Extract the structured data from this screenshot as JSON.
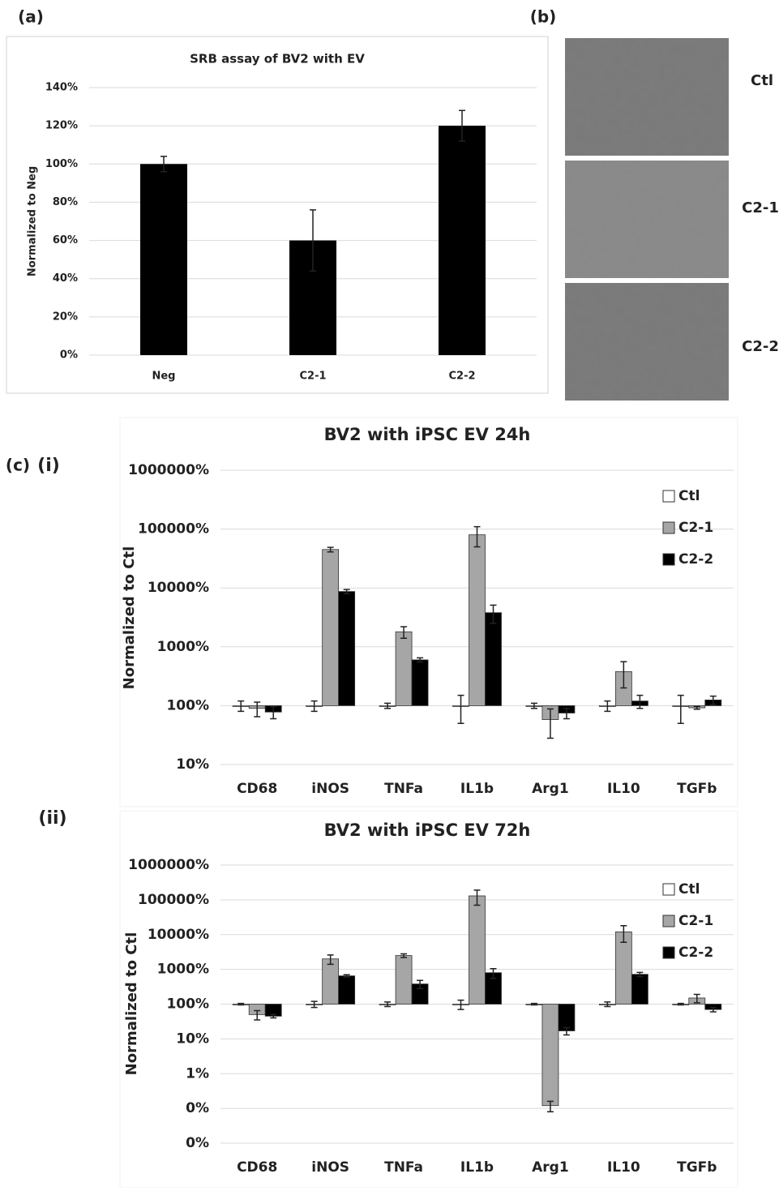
{
  "images": {
    "label": "(b)",
    "captions": [
      "Ctl",
      "C2-1",
      "C2-2"
    ]
  },
  "chart_data": [
    {
      "type": "bar",
      "panel": "(a)",
      "title": "SRB assay of BV2 with EV",
      "y_label": "Normalized to Neg",
      "categories": [
        "Neg",
        "C2-1",
        "C2-2"
      ],
      "values": [
        100,
        60,
        120
      ],
      "errors": [
        4,
        16,
        8
      ],
      "color": "#000000",
      "ylim": [
        0,
        140
      ],
      "yticks": [
        {
          "value": 0,
          "label": "0%"
        },
        {
          "value": 20,
          "label": "20%"
        },
        {
          "value": 40,
          "label": "40%"
        },
        {
          "value": 60,
          "label": "60%"
        },
        {
          "value": 80,
          "label": "80%"
        },
        {
          "value": 100,
          "label": "100%"
        },
        {
          "value": 120,
          "label": "120%"
        },
        {
          "value": 140,
          "label": "140%"
        }
      ],
      "grid": true
    },
    {
      "type": "bar",
      "panel": "(c)",
      "subpanel": "(i)",
      "title": "BV2 with iPSC EV 24h",
      "y_label": "Normalized to Ctl",
      "log_scale": true,
      "categories": [
        "CD68",
        "iNOS",
        "TNFa",
        "IL1b",
        "Arg1",
        "IL10",
        "TGFb"
      ],
      "series": [
        {
          "name": "Ctl",
          "color": "#ffffff",
          "values": [
            100,
            100,
            100,
            100,
            100,
            100,
            100
          ],
          "errors": [
            20,
            20,
            10,
            50,
            10,
            20,
            50
          ]
        },
        {
          "name": "C2-1",
          "color": "#a6a6a6",
          "values": [
            90,
            45000,
            1800,
            80000,
            58,
            380,
            92
          ],
          "errors": [
            25,
            4000,
            400,
            30000,
            30,
            180,
            5
          ]
        },
        {
          "name": "C2-2",
          "color": "#000000",
          "values": [
            78,
            8700,
            600,
            3800,
            75,
            120,
            125
          ],
          "errors": [
            18,
            700,
            50,
            1300,
            15,
            30,
            20
          ]
        }
      ],
      "ylim": [
        10,
        1000000
      ],
      "yticks": [
        {
          "value": 10,
          "label": "10%"
        },
        {
          "value": 100,
          "label": "100%"
        },
        {
          "value": 1000,
          "label": "1000%"
        },
        {
          "value": 10000,
          "label": "10000%"
        },
        {
          "value": 100000,
          "label": "100000%"
        },
        {
          "value": 1000000,
          "label": "1000000%"
        }
      ],
      "grid": true,
      "legend": "upper right"
    },
    {
      "type": "bar",
      "subpanel": "(ii)",
      "title": "BV2 with iPSC EV  72h",
      "y_label": "Normalized to Ctl",
      "log_scale": true,
      "categories": [
        "CD68",
        "iNOS",
        "TNFa",
        "IL1b",
        "Arg1",
        "IL10",
        "TGFb"
      ],
      "series": [
        {
          "name": "Ctl",
          "color": "#ffffff",
          "values": [
            100,
            100,
            100,
            100,
            100,
            100,
            100
          ],
          "errors": [
            5,
            20,
            15,
            30,
            5,
            15,
            5
          ]
        },
        {
          "name": "C2-1",
          "color": "#a6a6a6",
          "values": [
            50,
            2000,
            2500,
            130000,
            0.12,
            12000,
            150
          ],
          "errors": [
            15,
            600,
            300,
            60000,
            0.04,
            6000,
            40
          ]
        },
        {
          "name": "C2-2",
          "color": "#000000",
          "values": [
            45,
            650,
            380,
            800,
            17,
            720,
            70
          ],
          "errors": [
            5,
            50,
            100,
            250,
            4,
            100,
            10
          ]
        }
      ],
      "ylim": [
        0.01,
        1000000
      ],
      "yticks": [
        {
          "value": 0.01,
          "label": "0%"
        },
        {
          "value": 0.1,
          "label": "0%"
        },
        {
          "value": 1,
          "label": "1%"
        },
        {
          "value": 10,
          "label": "10%"
        },
        {
          "value": 100,
          "label": "100%"
        },
        {
          "value": 1000,
          "label": "1000%"
        },
        {
          "value": 10000,
          "label": "10000%"
        },
        {
          "value": 100000,
          "label": "100000%"
        },
        {
          "value": 1000000,
          "label": "1000000%"
        }
      ],
      "grid": true,
      "legend": "upper right"
    }
  ]
}
